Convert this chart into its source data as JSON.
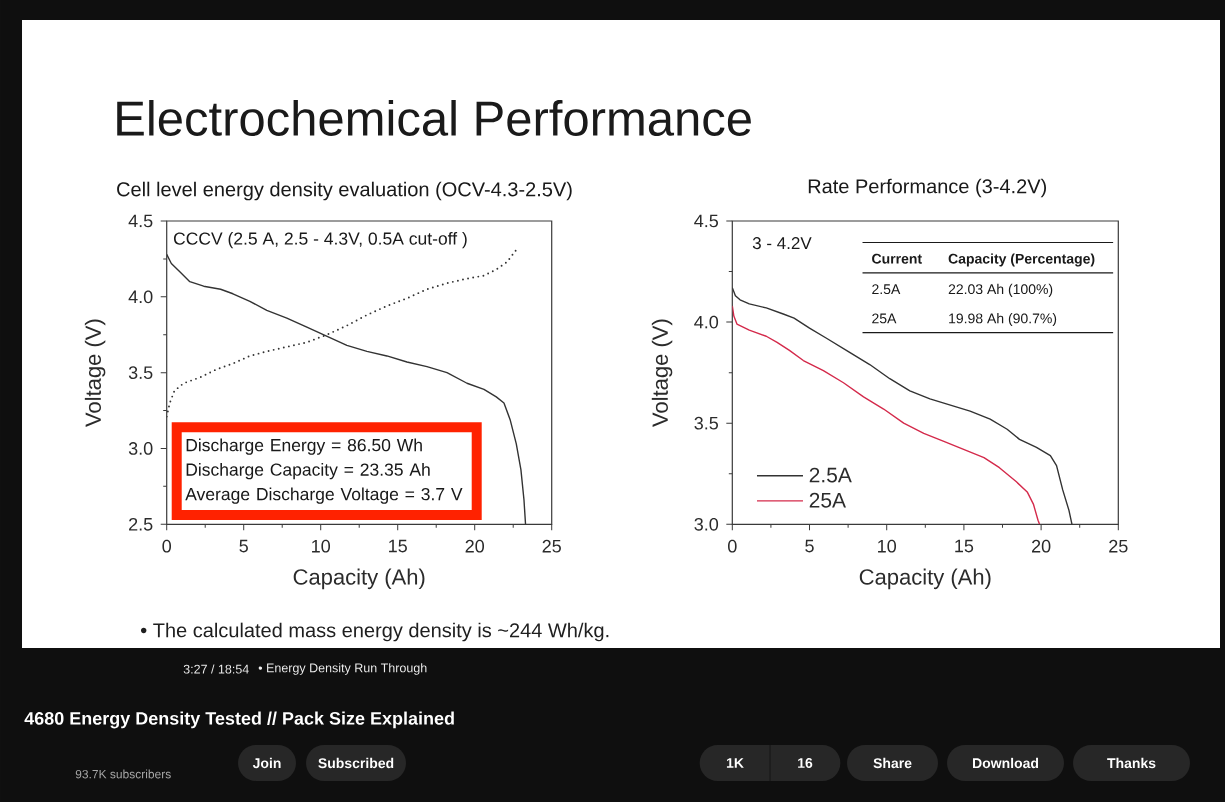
{
  "chart_data": [
    {
      "type": "line",
      "title": "Cell level energy density evaluation (OCV-4.3-2.5V)",
      "xlabel": "Capacity (Ah)",
      "ylabel": "Voltage (V)",
      "annotations": [
        "CCCV (2.5 A, 2.5 - 4.3V, 0.5A cut-off )",
        "Discharge Energy = 86.50 Wh",
        "Discharge Capacity = 23.35 Ah",
        "Average Discharge Voltage = 3.7 V"
      ],
      "series": [
        {
          "color": "#333333",
          "line_style": "solid",
          "x": [
            0,
            0.3,
            0.9,
            1.5,
            2.4,
            3.5,
            4.3,
            5.4,
            6.5,
            7.8,
            9.1,
            10.4,
            11.7,
            13.0,
            14.3,
            15.6,
            16.9,
            18.2,
            19.5,
            20.6,
            21.4,
            21.9,
            22.3,
            22.7,
            23.0,
            23.2,
            23.3
          ],
          "values": [
            4.28,
            4.22,
            4.16,
            4.1,
            4.07,
            4.05,
            4.02,
            3.97,
            3.91,
            3.86,
            3.8,
            3.74,
            3.68,
            3.64,
            3.61,
            3.57,
            3.54,
            3.5,
            3.43,
            3.39,
            3.34,
            3.3,
            3.19,
            3.03,
            2.86,
            2.66,
            2.5
          ]
        },
        {
          "color": "#333333",
          "line_style": "dotted",
          "x": [
            0,
            0.2,
            0.5,
            1.1,
            2.2,
            3.2,
            4.3,
            5.4,
            6.5,
            7.8,
            9.1,
            10.4,
            11.7,
            13.0,
            14.3,
            15.6,
            16.9,
            18.2,
            19.5,
            20.6,
            21.4,
            22.1,
            22.7
          ],
          "values": [
            3.21,
            3.3,
            3.38,
            3.43,
            3.47,
            3.52,
            3.56,
            3.61,
            3.64,
            3.67,
            3.7,
            3.75,
            3.81,
            3.88,
            3.94,
            3.99,
            4.05,
            4.09,
            4.12,
            4.14,
            4.18,
            4.23,
            4.31
          ]
        }
      ],
      "xlim": [
        0,
        25
      ],
      "xticks": [
        0,
        {
          "value": 2.5,
          "label": null
        },
        5,
        {
          "value": 7.5,
          "label": null
        },
        10,
        {
          "value": 12.5,
          "label": null
        },
        15,
        {
          "value": 17.5,
          "label": null
        },
        20,
        {
          "value": 22.5,
          "label": null
        },
        25
      ],
      "ylim": [
        2.5,
        4.5
      ],
      "yticks": [
        2.5,
        {
          "value": 2.75,
          "label": null
        },
        {
          "value": 3,
          "label": "3.0"
        },
        {
          "value": 3.25,
          "label": null
        },
        3.5,
        {
          "value": 3.75,
          "label": null
        },
        {
          "value": 4,
          "label": "4.0"
        },
        {
          "value": 4.25,
          "label": null
        },
        4.5
      ],
      "marker": "none"
    },
    {
      "type": "line",
      "title": "Rate Performance (3-4.2V)",
      "xlabel": "Capacity (Ah)",
      "ylabel": "Voltage (V)",
      "annotations": [
        "3 - 4.2V",
        "Current",
        "Capacity (Percentage)",
        "2.5A",
        "22.03 Ah (100%)",
        "25A",
        "19.98 Ah (90.7%)"
      ],
      "series": [
        {
          "name": "2.5A",
          "color": "#333333",
          "x": [
            0,
            0.2,
            0.5,
            1.1,
            2.2,
            3.3,
            4.0,
            5.0,
            6.1,
            7.6,
            8.9,
            10.2,
            11.5,
            12.8,
            14.1,
            15.4,
            16.7,
            17.8,
            18.6,
            19.7,
            20.6,
            21.0,
            21.4,
            21.8,
            22.0
          ],
          "values": [
            4.17,
            4.13,
            4.11,
            4.09,
            4.07,
            4.04,
            4.02,
            3.97,
            3.92,
            3.85,
            3.79,
            3.72,
            3.66,
            3.62,
            3.59,
            3.56,
            3.52,
            3.47,
            3.42,
            3.38,
            3.34,
            3.29,
            3.17,
            3.07,
            3.0
          ]
        },
        {
          "name": "25A",
          "color": "#d42a4b",
          "x": [
            0,
            0.1,
            0.3,
            1.1,
            2.2,
            2.9,
            3.7,
            4.6,
            5.9,
            7.2,
            8.5,
            9.8,
            11.1,
            12.4,
            13.7,
            15.0,
            16.3,
            17.3,
            18.4,
            19.1,
            19.5,
            19.8,
            19.9
          ],
          "values": [
            4.08,
            4.03,
            3.99,
            3.96,
            3.93,
            3.9,
            3.86,
            3.81,
            3.76,
            3.7,
            3.63,
            3.57,
            3.5,
            3.45,
            3.41,
            3.37,
            3.33,
            3.28,
            3.21,
            3.16,
            3.1,
            3.02,
            3.0
          ]
        }
      ],
      "xlim": [
        0,
        25
      ],
      "xticks": [
        0,
        {
          "value": 2.5,
          "label": null
        },
        5,
        {
          "value": 7.5,
          "label": null
        },
        10,
        {
          "value": 12.5,
          "label": null
        },
        15,
        {
          "value": 17.5,
          "label": null
        },
        20,
        {
          "value": 22.5,
          "label": null
        },
        25
      ],
      "ylim": [
        3,
        4.5
      ],
      "yticks": [
        {
          "value": 3,
          "label": "3.0"
        },
        {
          "value": 3.25,
          "label": null
        },
        3.5,
        {
          "value": 3.75,
          "label": null
        },
        {
          "value": 4,
          "label": "4.0"
        },
        {
          "value": 4.25,
          "label": null
        },
        4.5
      ],
      "marker": "none",
      "legend": "bottom left"
    },
    {
      "type": "other",
      "title": "Electrochemical Performance",
      "annotations": [
        "• The calculated mass energy density is ~244 Wh/kg.",
        "3:27 / 18:54",
        "• Energy Density Run Through",
        "4680 Energy Density Tested // Pack Size Explained",
        "93.7K subscribers",
        "Join",
        "Subscribed",
        "1K",
        "16",
        "Share",
        "Download",
        "Thanks"
      ]
    }
  ]
}
